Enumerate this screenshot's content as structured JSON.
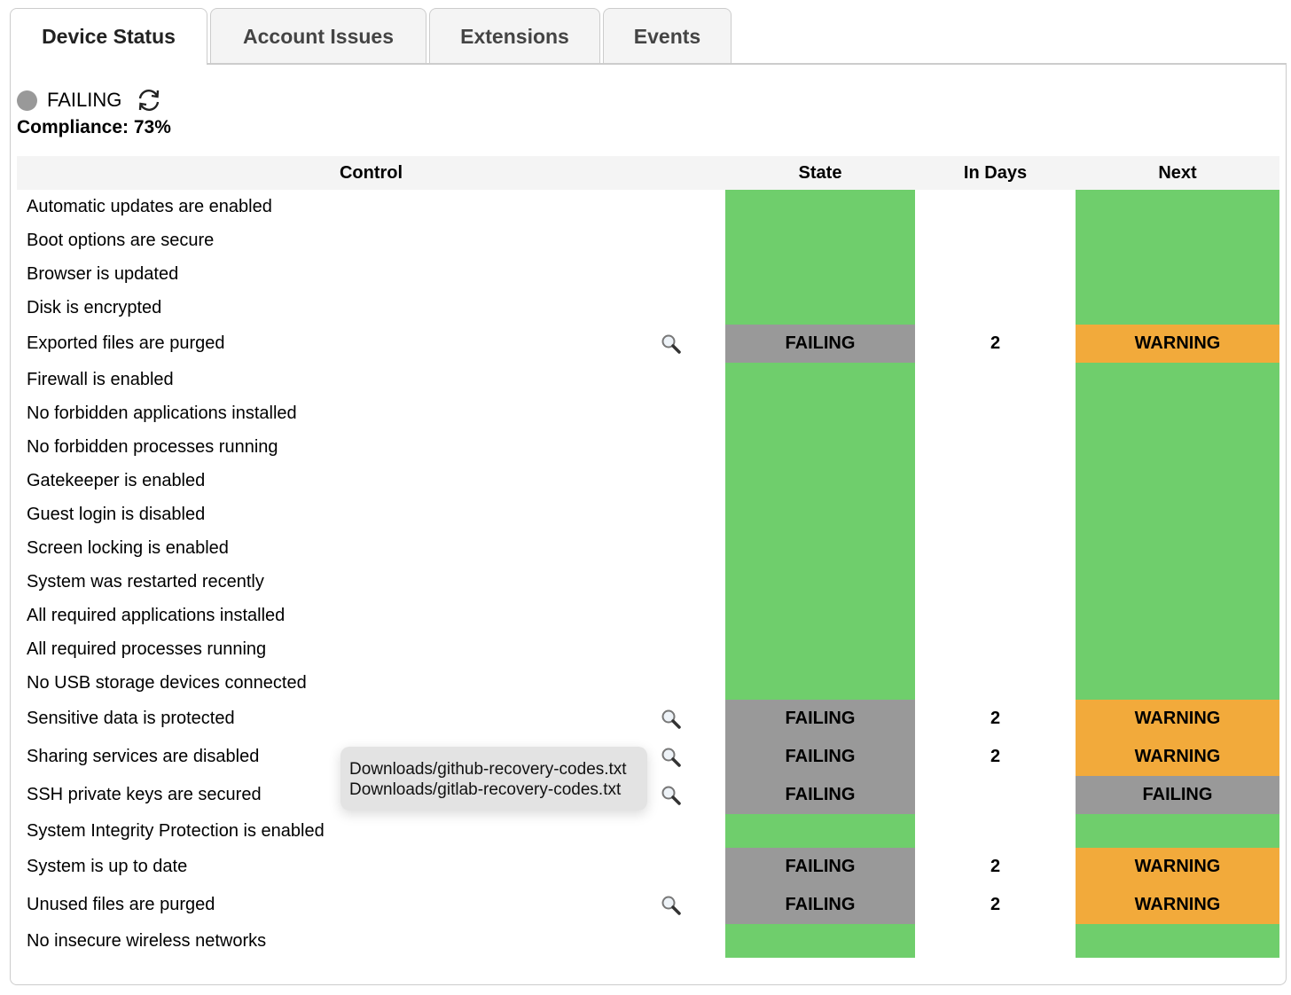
{
  "tabs": [
    {
      "label": "Device Status",
      "active": true
    },
    {
      "label": "Account Issues"
    },
    {
      "label": "Extensions"
    },
    {
      "label": "Events"
    }
  ],
  "status": {
    "label": "FAILING",
    "dot_color": "#999999",
    "refresh_icon": "refresh-icon"
  },
  "compliance": "Compliance: 73%",
  "table": {
    "headers": [
      "Control",
      "State",
      "In Days",
      "Next"
    ],
    "rows": [
      {
        "control": "Automatic updates are enabled",
        "state": "PASSING",
        "state_text": "",
        "days": "",
        "next": "PASSING",
        "next_text": ""
      },
      {
        "control": "Boot options are secure",
        "state": "PASSING",
        "state_text": "",
        "days": "",
        "next": "PASSING",
        "next_text": ""
      },
      {
        "control": "Browser is updated",
        "state": "PASSING",
        "state_text": "",
        "days": "",
        "next": "PASSING",
        "next_text": ""
      },
      {
        "control": "Disk is encrypted",
        "state": "PASSING",
        "state_text": "",
        "days": "",
        "next": "PASSING",
        "next_text": ""
      },
      {
        "control": "Exported files are purged",
        "icon": true,
        "state": "FAILING",
        "state_text": "FAILING",
        "days": "2",
        "next": "WARNING",
        "next_text": "WARNING"
      },
      {
        "control": "Firewall is enabled",
        "state": "PASSING",
        "state_text": "",
        "days": "",
        "next": "PASSING",
        "next_text": ""
      },
      {
        "control": "No forbidden applications installed",
        "state": "PASSING",
        "state_text": "",
        "days": "",
        "next": "PASSING",
        "next_text": ""
      },
      {
        "control": "No forbidden processes running",
        "state": "PASSING",
        "state_text": "",
        "days": "",
        "next": "PASSING",
        "next_text": ""
      },
      {
        "control": "Gatekeeper is enabled",
        "state": "PASSING",
        "state_text": "",
        "days": "",
        "next": "PASSING",
        "next_text": ""
      },
      {
        "control": "Guest login is disabled",
        "state": "PASSING",
        "state_text": "",
        "days": "",
        "next": "PASSING",
        "next_text": ""
      },
      {
        "control": "Screen locking is enabled",
        "state": "PASSING",
        "state_text": "",
        "days": "",
        "next": "PASSING",
        "next_text": ""
      },
      {
        "control": "System was restarted recently",
        "state": "PASSING",
        "state_text": "",
        "days": "",
        "next": "PASSING",
        "next_text": ""
      },
      {
        "control": "All required applications installed",
        "state": "PASSING",
        "state_text": "",
        "days": "",
        "next": "PASSING",
        "next_text": ""
      },
      {
        "control": "All required processes running",
        "state": "PASSING",
        "state_text": "",
        "days": "",
        "next": "PASSING",
        "next_text": ""
      },
      {
        "control": "No USB storage devices connected",
        "state": "PASSING",
        "state_text": "",
        "days": "",
        "next": "PASSING",
        "next_text": ""
      },
      {
        "control": "Sensitive data is protected",
        "icon": true,
        "state": "FAILING",
        "state_text": "FAILING",
        "days": "2",
        "next": "WARNING",
        "next_text": "WARNING"
      },
      {
        "control": "Sharing services are disabled",
        "icon": true,
        "state": "FAILING",
        "state_text": "FAILING",
        "days": "2",
        "next": "WARNING",
        "next_text": "WARNING"
      },
      {
        "control": "SSH private keys are secured",
        "icon": true,
        "state": "FAILING",
        "state_text": "FAILING",
        "days": "",
        "next": "FAILING",
        "next_text": "FAILING"
      },
      {
        "control": "System Integrity Protection is enabled",
        "state": "PASSING",
        "state_text": "",
        "days": "",
        "next": "PASSING",
        "next_text": ""
      },
      {
        "control": "System is up to date",
        "state": "FAILING",
        "state_text": "FAILING",
        "days": "2",
        "next": "WARNING",
        "next_text": "WARNING"
      },
      {
        "control": "Unused files are purged",
        "icon": true,
        "state": "FAILING",
        "state_text": "FAILING",
        "days": "2",
        "next": "WARNING",
        "next_text": "WARNING"
      },
      {
        "control": "No insecure wireless networks",
        "state": "PASSING",
        "state_text": "",
        "days": "",
        "next": "PASSING",
        "next_text": ""
      }
    ]
  },
  "tooltip": {
    "lines": [
      "Downloads/github-recovery-codes.txt",
      "Downloads/gitlab-recovery-codes.txt"
    ]
  },
  "colors": {
    "passing": "#6fce6c",
    "failing": "#999999",
    "warning": "#f2aa3b"
  }
}
